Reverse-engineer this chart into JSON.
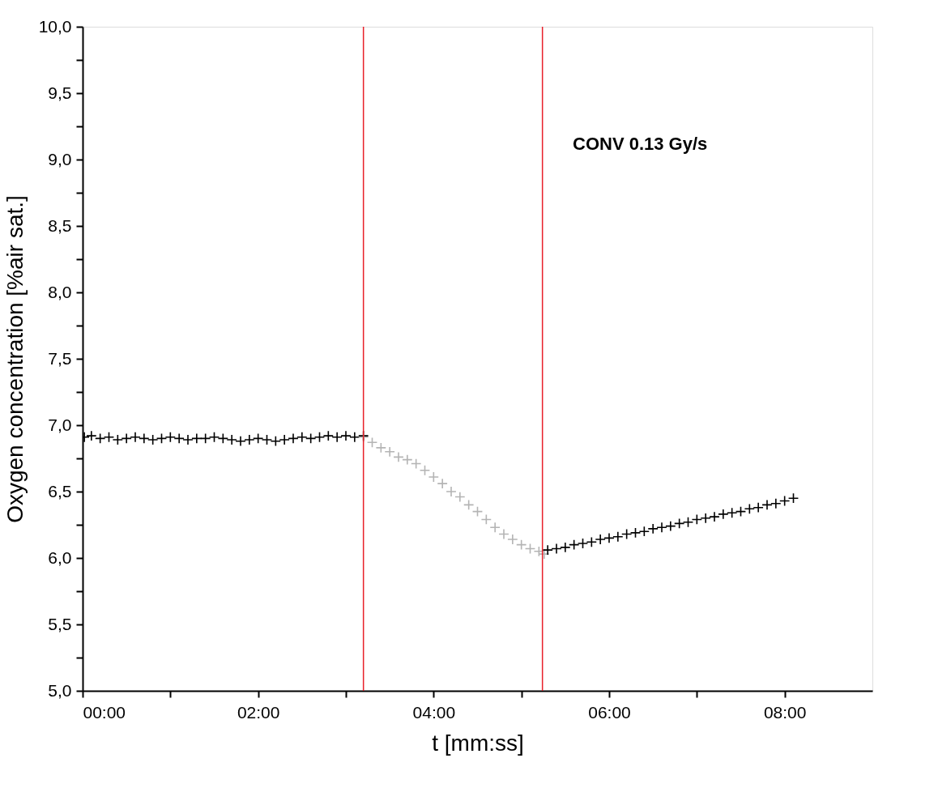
{
  "chart_data": {
    "type": "scatter",
    "xlabel": "t [mm:ss]",
    "ylabel": "Oxygen concentration [%air sat.]",
    "annotations": [
      "CONV 0.13 Gy/s"
    ],
    "marker": "cross",
    "grid": false,
    "xlim": [
      0,
      9
    ],
    "ylim": [
      5,
      10
    ],
    "xticks": [
      {
        "value": 0,
        "label": "00:00"
      },
      {
        "value": 1,
        "label": null
      },
      {
        "value": 2,
        "label": "02:00"
      },
      {
        "value": 3,
        "label": null
      },
      {
        "value": 4,
        "label": "04:00"
      },
      {
        "value": 5,
        "label": null
      },
      {
        "value": 6,
        "label": "06:00"
      },
      {
        "value": 7,
        "label": null
      },
      {
        "value": 8,
        "label": "08:00"
      }
    ],
    "yticks": [
      {
        "value": 5,
        "label": "5,0"
      },
      {
        "value": 5.25,
        "label": null
      },
      {
        "value": 5.5,
        "label": "5,5"
      },
      {
        "value": 5.75,
        "label": null
      },
      {
        "value": 6,
        "label": "6,0"
      },
      {
        "value": 6.25,
        "label": null
      },
      {
        "value": 6.5,
        "label": "6,5"
      },
      {
        "value": 6.75,
        "label": null
      },
      {
        "value": 7,
        "label": "7,0"
      },
      {
        "value": 7.25,
        "label": null
      },
      {
        "value": 7.5,
        "label": "7,5"
      },
      {
        "value": 7.75,
        "label": null
      },
      {
        "value": 8,
        "label": "8,0"
      },
      {
        "value": 8.25,
        "label": null
      },
      {
        "value": 8.5,
        "label": "8,5"
      },
      {
        "value": 8.75,
        "label": null
      },
      {
        "value": 9,
        "label": "9,0"
      },
      {
        "value": 9.25,
        "label": null
      },
      {
        "value": 9.5,
        "label": "9,5"
      },
      {
        "value": 9.75,
        "label": null
      },
      {
        "value": 10,
        "label": "10,0"
      }
    ],
    "ref_lines": [
      {
        "axis": "x",
        "value": 3.2,
        "color": "#e8202a"
      },
      {
        "axis": "x",
        "value": 5.24,
        "color": "#e8202a"
      }
    ],
    "series": [
      {
        "color": "#000000",
        "x": [
          0.02,
          0.1,
          0.2,
          0.3,
          0.4,
          0.5,
          0.6,
          0.7,
          0.8,
          0.9,
          1.0,
          1.1,
          1.2,
          1.3,
          1.4,
          1.5,
          1.6,
          1.7,
          1.8,
          1.9,
          2.0,
          2.1,
          2.2,
          2.3,
          2.4,
          2.5,
          2.6,
          2.7,
          2.8,
          2.9,
          3.0,
          3.1,
          3.2
        ],
        "values": [
          6.91,
          6.92,
          6.9,
          6.91,
          6.89,
          6.9,
          6.91,
          6.9,
          6.89,
          6.9,
          6.91,
          6.9,
          6.89,
          6.9,
          6.9,
          6.91,
          6.9,
          6.89,
          6.88,
          6.89,
          6.9,
          6.89,
          6.88,
          6.89,
          6.9,
          6.91,
          6.9,
          6.91,
          6.92,
          6.91,
          6.92,
          6.91,
          6.92
        ]
      },
      {
        "color": "#b4b4b4",
        "x": [
          3.2,
          3.3,
          3.4,
          3.5,
          3.6,
          3.7,
          3.8,
          3.9,
          4.0,
          4.1,
          4.2,
          4.3,
          4.4,
          4.5,
          4.6,
          4.7,
          4.8,
          4.9,
          5.0,
          5.1,
          5.2,
          5.26
        ],
        "values": [
          6.91,
          6.87,
          6.83,
          6.8,
          6.76,
          6.74,
          6.71,
          6.66,
          6.61,
          6.56,
          6.5,
          6.46,
          6.4,
          6.35,
          6.29,
          6.23,
          6.18,
          6.14,
          6.1,
          6.07,
          6.05,
          6.03
        ]
      },
      {
        "color": "#000000",
        "x": [
          5.3,
          5.4,
          5.5,
          5.6,
          5.7,
          5.8,
          5.9,
          6.0,
          6.1,
          6.2,
          6.3,
          6.4,
          6.5,
          6.6,
          6.7,
          6.8,
          6.9,
          7.0,
          7.1,
          7.2,
          7.3,
          7.4,
          7.5,
          7.6,
          7.7,
          7.8,
          7.9,
          8.0,
          8.1
        ],
        "values": [
          6.06,
          6.07,
          6.08,
          6.1,
          6.11,
          6.12,
          6.14,
          6.15,
          6.16,
          6.18,
          6.19,
          6.2,
          6.22,
          6.23,
          6.24,
          6.26,
          6.27,
          6.29,
          6.3,
          6.31,
          6.33,
          6.34,
          6.35,
          6.37,
          6.38,
          6.4,
          6.41,
          6.43,
          6.45
        ]
      }
    ]
  }
}
